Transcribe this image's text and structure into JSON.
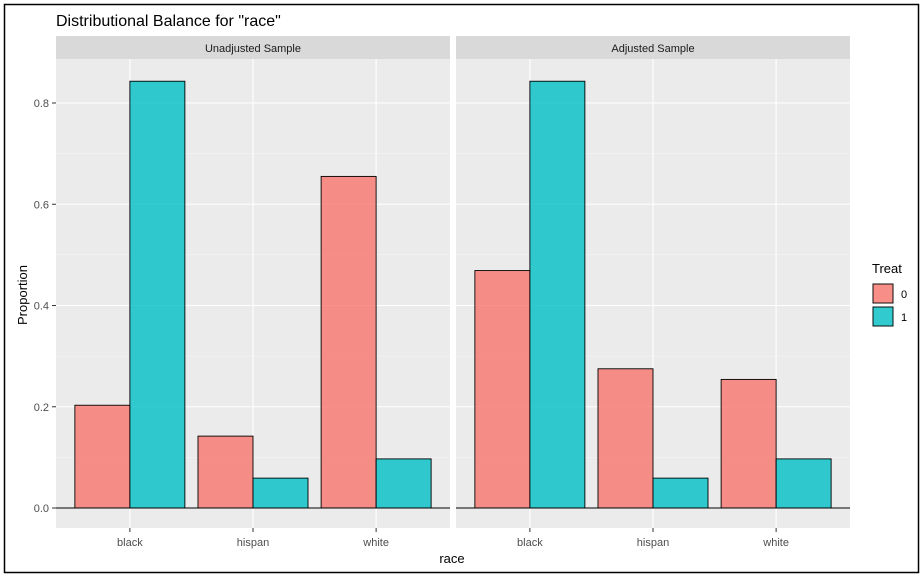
{
  "chart_data": {
    "type": "bar",
    "title": "Distributional Balance for \"race\"",
    "xlabel": "race",
    "ylabel": "Proportion",
    "ylim": [
      0,
      0.87
    ],
    "yticks": [
      0.0,
      0.2,
      0.4,
      0.6,
      0.8
    ],
    "ytick_labels": [
      "0.0",
      "0.2",
      "0.4",
      "0.6",
      "0.8"
    ],
    "categories": [
      "black",
      "hispan",
      "white"
    ],
    "legend": {
      "title": "Treat",
      "position": "right",
      "entries": [
        "0",
        "1"
      ]
    },
    "colors": {
      "0": "#F8766D",
      "1": "#00BFC4",
      "panel_bg": "#EBEBEB",
      "strip_bg": "#D9D9D9",
      "grid": "#FFFFFF"
    },
    "panels": [
      {
        "label": "Unadjusted Sample",
        "series": [
          {
            "name": "0",
            "values": [
              0.203,
              0.142,
              0.655
            ]
          },
          {
            "name": "1",
            "values": [
              0.843,
              0.059,
              0.097
            ]
          }
        ]
      },
      {
        "label": "Adjusted Sample",
        "series": [
          {
            "name": "0",
            "values": [
              0.469,
              0.275,
              0.254
            ]
          },
          {
            "name": "1",
            "values": [
              0.843,
              0.059,
              0.097
            ]
          }
        ]
      }
    ]
  }
}
